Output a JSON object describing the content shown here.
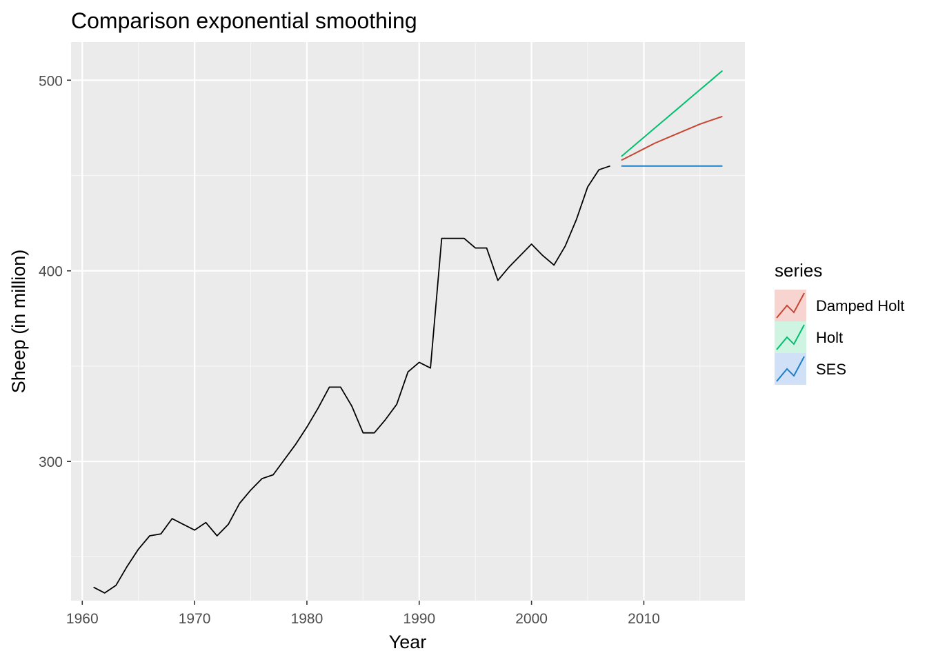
{
  "chart_data": {
    "type": "line",
    "title": "Comparison exponential smoothing",
    "xlabel": "Year",
    "ylabel": "Sheep (in million)",
    "xlim": [
      1959,
      2019
    ],
    "ylim": [
      227,
      520
    ],
    "x_ticks": [
      1960,
      1970,
      1980,
      1990,
      2000,
      2010
    ],
    "y_ticks": [
      300,
      400,
      500
    ],
    "grid": true,
    "legend": {
      "title": "series",
      "position": "right",
      "entries": [
        {
          "label": "Damped Holt",
          "color": "#c74532",
          "fill": "#f7d4d0"
        },
        {
          "label": "Holt",
          "color": "#00bf6f",
          "fill": "#cff5e2"
        },
        {
          "label": "SES",
          "color": "#1a7fc7",
          "fill": "#d0e0f7"
        }
      ]
    },
    "history": {
      "color": "#000000",
      "x": [
        1961,
        1962,
        1963,
        1964,
        1965,
        1966,
        1967,
        1968,
        1969,
        1970,
        1971,
        1972,
        1973,
        1974,
        1975,
        1976,
        1977,
        1978,
        1979,
        1980,
        1981,
        1982,
        1983,
        1984,
        1985,
        1986,
        1987,
        1988,
        1989,
        1990,
        1991,
        1992,
        1993,
        1994,
        1995,
        1996,
        1997,
        1998,
        1999,
        2000,
        2001,
        2002,
        2003,
        2004,
        2005,
        2006,
        2007
      ],
      "y": [
        234,
        231,
        235,
        245,
        254,
        261,
        262,
        270,
        267,
        264,
        268,
        261,
        267,
        278,
        285,
        291,
        293,
        301,
        309,
        318,
        328,
        339,
        339,
        329,
        315,
        315,
        322,
        330,
        347,
        352,
        349,
        417,
        417,
        417,
        412,
        412,
        395,
        402,
        408,
        414,
        408,
        403,
        413,
        427,
        444,
        453,
        455
      ]
    },
    "series": [
      {
        "name": "Damped Holt",
        "color": "#c74532",
        "x": [
          2008,
          2009,
          2010,
          2011,
          2012,
          2013,
          2014,
          2015,
          2016,
          2017
        ],
        "y": [
          458,
          461,
          464,
          467,
          469.5,
          472,
          474.5,
          477,
          479,
          481
        ]
      },
      {
        "name": "Holt",
        "color": "#00bf6f",
        "x": [
          2008,
          2009,
          2010,
          2011,
          2012,
          2013,
          2014,
          2015,
          2016,
          2017
        ],
        "y": [
          460,
          465,
          470,
          475,
          480,
          485,
          490,
          495,
          500,
          505
        ]
      },
      {
        "name": "SES",
        "color": "#1a7fc7",
        "x": [
          2008,
          2009,
          2010,
          2011,
          2012,
          2013,
          2014,
          2015,
          2016,
          2017
        ],
        "y": [
          455,
          455,
          455,
          455,
          455,
          455,
          455,
          455,
          455,
          455
        ]
      }
    ]
  }
}
